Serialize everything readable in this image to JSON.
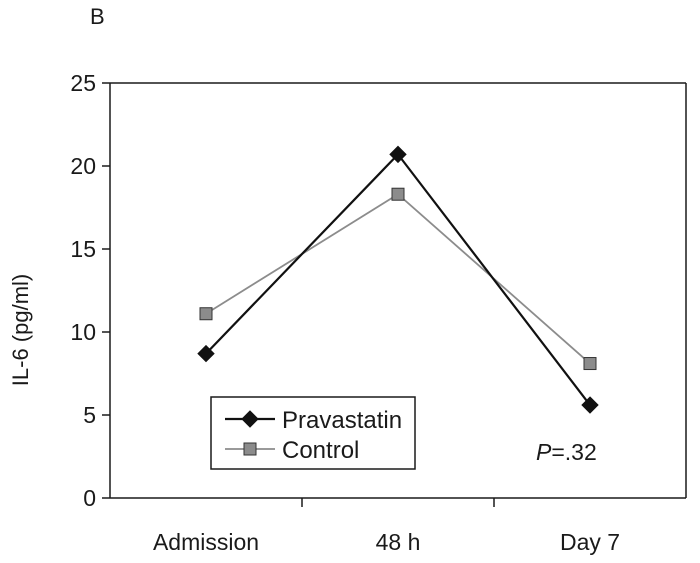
{
  "panel_label": "B",
  "chart_data": {
    "type": "line",
    "categories": [
      "Admission",
      "48 h",
      "Day 7"
    ],
    "series": [
      {
        "name": "Pravastatin",
        "values": [
          8.7,
          20.7,
          5.6
        ],
        "color": "#111111",
        "marker": "diamond"
      },
      {
        "name": "Control",
        "values": [
          11.1,
          18.3,
          8.1
        ],
        "color": "#8c8c8c",
        "marker": "square"
      }
    ],
    "title": "",
    "xlabel": "",
    "ylabel": "IL-6 (pg/ml)",
    "ylim": [
      0,
      25
    ],
    "yticks": [
      "0",
      "5",
      "10",
      "15",
      "20",
      "25"
    ],
    "grid": false,
    "legend_position": "bottom-left",
    "annotation": {
      "italic": "P",
      "rest": "=.32"
    }
  }
}
